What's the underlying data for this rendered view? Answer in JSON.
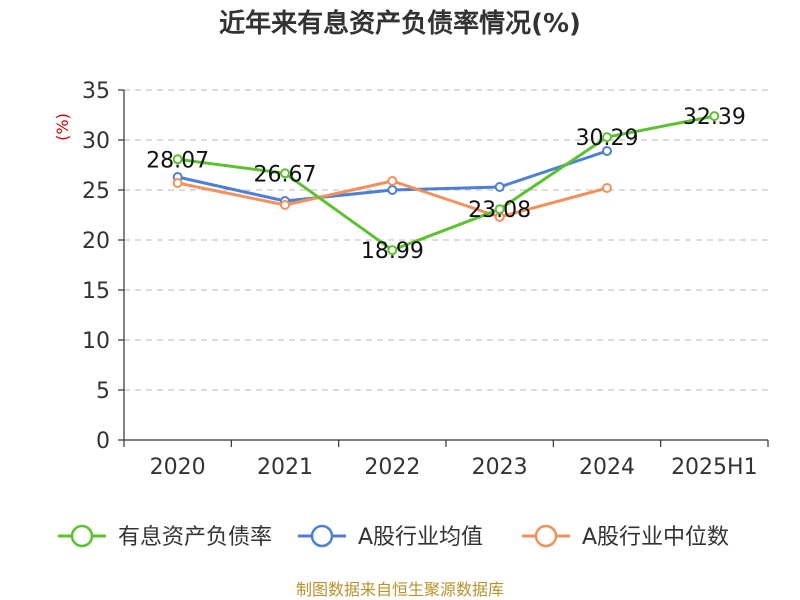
{
  "chart_data": {
    "type": "line",
    "title": "近年来有息资产负债率情况(%)",
    "ylabel": "(%)",
    "xlabel": "",
    "categories": [
      "2020",
      "2021",
      "2022",
      "2023",
      "2024",
      "2025H1"
    ],
    "ylim": [
      0,
      35
    ],
    "yticks": [
      "0",
      "5",
      "10",
      "15",
      "20",
      "25",
      "30",
      "35"
    ],
    "grid": true,
    "legend_position": "bottom",
    "series": [
      {
        "name": "有息资产负债率",
        "color": "#5cc12e",
        "values": [
          28.07,
          26.67,
          18.99,
          23.08,
          30.29,
          32.39
        ],
        "labels": [
          "28.07",
          "26.67",
          "18.99",
          "23.08",
          "30.29",
          "32.39"
        ]
      },
      {
        "name": "A股行业均值",
        "color": "#4d7fd9",
        "values": [
          26.3,
          23.9,
          25.0,
          25.3,
          28.9,
          null
        ]
      },
      {
        "name": "A股行业中位数",
        "color": "#f4905a",
        "values": [
          25.7,
          23.5,
          25.9,
          22.3,
          25.2,
          null
        ]
      }
    ],
    "source": "制图数据来自恒生聚源数据库"
  }
}
